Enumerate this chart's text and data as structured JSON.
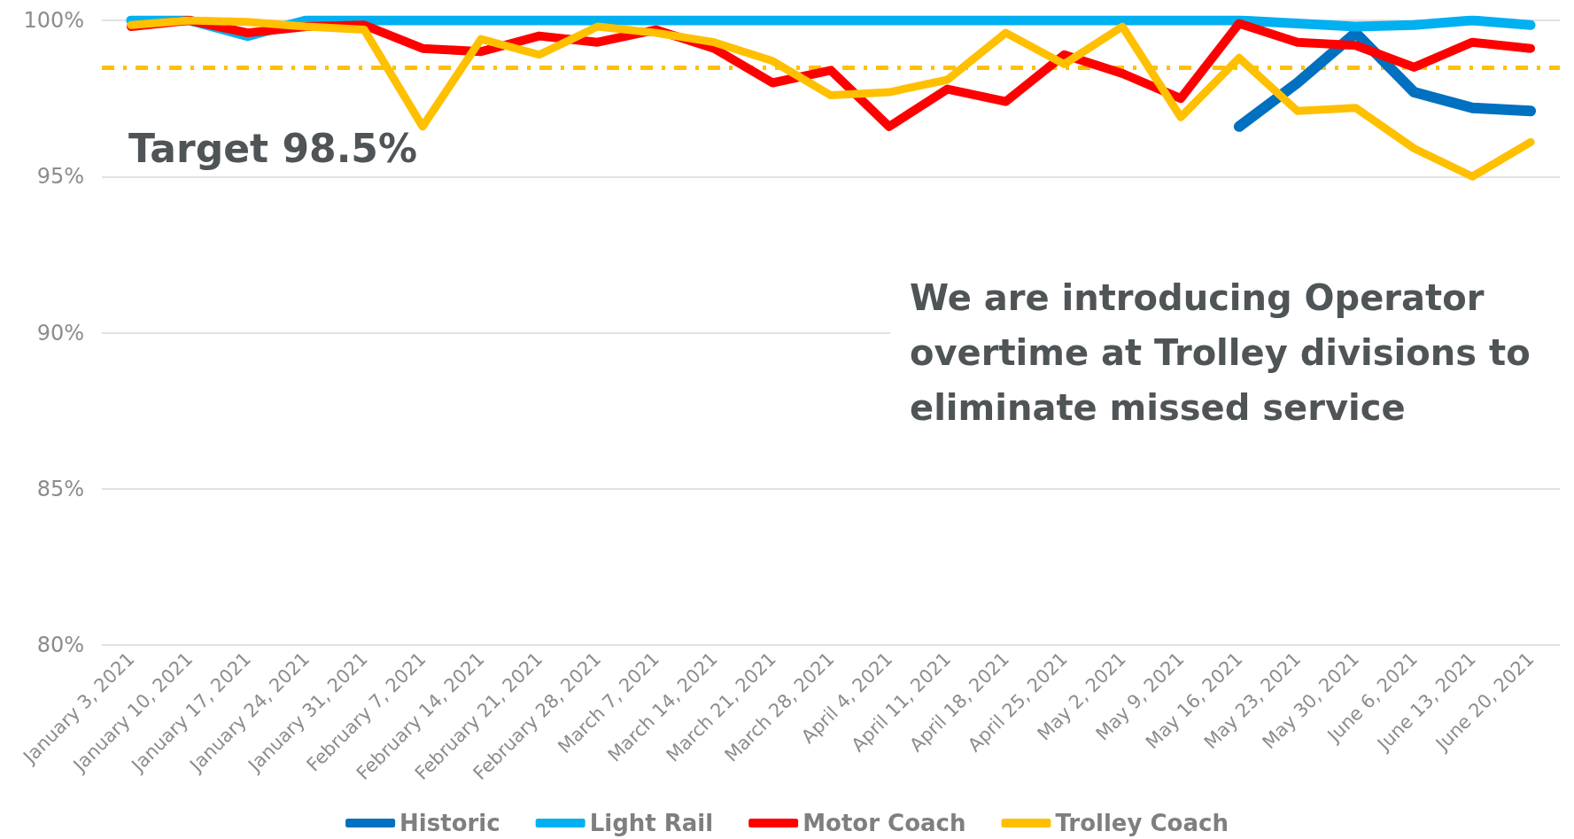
{
  "chart_data": {
    "type": "line",
    "categories": [
      "January 3, 2021",
      "January 10, 2021",
      "January 17, 2021",
      "January 24, 2021",
      "January 31, 2021",
      "February 7, 2021",
      "February 14, 2021",
      "February 21, 2021",
      "February 28, 2021",
      "March 7, 2021",
      "March 14, 2021",
      "March 21, 2021",
      "March 28, 2021",
      "April 4, 2021",
      "April 11, 2021",
      "April 18, 2021",
      "April 25, 2021",
      "May 2, 2021",
      "May 9, 2021",
      "May 16, 2021",
      "May 23, 2021",
      "May 30, 2021",
      "June 6, 2021",
      "June 13, 2021",
      "June 20, 2021"
    ],
    "series": [
      {
        "name": "Historic",
        "color": "#0070c0",
        "values": [
          null,
          null,
          null,
          null,
          null,
          null,
          null,
          null,
          null,
          null,
          null,
          null,
          null,
          null,
          null,
          null,
          null,
          null,
          null,
          96.6,
          98.0,
          99.6,
          97.7,
          97.2,
          97.1
        ]
      },
      {
        "name": "Light Rail",
        "color": "#00b0f0",
        "values": [
          100,
          100,
          99.5,
          100,
          100,
          100,
          100,
          100,
          100,
          100,
          100,
          100,
          100,
          100,
          100,
          100,
          100,
          100,
          100,
          100,
          99.9,
          99.8,
          99.85,
          100,
          99.85
        ]
      },
      {
        "name": "Motor Coach",
        "color": "#ff0000",
        "values": [
          99.8,
          100,
          99.6,
          99.8,
          99.85,
          99.1,
          99.0,
          99.5,
          99.3,
          99.7,
          99.1,
          98.0,
          98.4,
          96.6,
          97.8,
          97.4,
          98.9,
          98.3,
          97.5,
          99.9,
          99.3,
          99.2,
          98.5,
          99.3,
          99.1
        ]
      },
      {
        "name": "Trolley Coach",
        "color": "#ffc000",
        "values": [
          99.85,
          100,
          99.95,
          99.8,
          99.7,
          96.6,
          99.4,
          98.9,
          99.8,
          99.6,
          99.3,
          98.7,
          97.6,
          97.7,
          98.1,
          99.6,
          98.6,
          99.8,
          96.9,
          98.8,
          97.1,
          97.2,
          95.9,
          95.0,
          96.1
        ]
      }
    ],
    "ylim": [
      80,
      100
    ],
    "yticks": [
      {
        "value": 80,
        "label": "80%"
      },
      {
        "value": 85,
        "label": "85%"
      },
      {
        "value": 90,
        "label": "90%"
      },
      {
        "value": 95,
        "label": "95%"
      },
      {
        "value": 100,
        "label": "100%"
      }
    ],
    "grid": "y",
    "legend": "bottom",
    "marker": "none",
    "line_style": "solid",
    "ref_lines": [
      {
        "axis": "y",
        "value": 98.5,
        "label": "Target 98.5%",
        "color": "#ffc000",
        "line_style": "dashed"
      }
    ],
    "annotations": [
      "We are introducing Operator overtime at Trolley divisions to eliminate missed service"
    ]
  }
}
